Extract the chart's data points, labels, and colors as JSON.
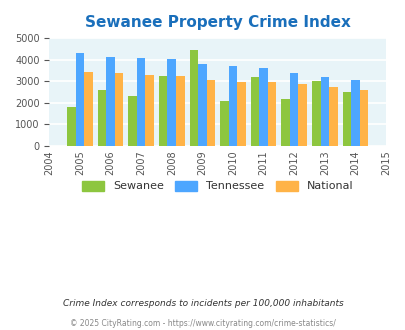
{
  "title": "Sewanee Property Crime Index",
  "title_color": "#1a6fbb",
  "years": [
    2004,
    2005,
    2006,
    2007,
    2008,
    2009,
    2010,
    2011,
    2012,
    2013,
    2014,
    2015
  ],
  "data_years": [
    2005,
    2006,
    2007,
    2008,
    2009,
    2010,
    2011,
    2012,
    2013,
    2014
  ],
  "sewanee": [
    1800,
    2600,
    2300,
    3250,
    4450,
    2050,
    3200,
    2150,
    3000,
    2500
  ],
  "tennessee": [
    4300,
    4100,
    4080,
    4050,
    3780,
    3680,
    3600,
    3380,
    3180,
    3070
  ],
  "national": [
    3440,
    3360,
    3260,
    3220,
    3050,
    2960,
    2940,
    2880,
    2730,
    2600
  ],
  "sewanee_color": "#8dc63f",
  "tennessee_color": "#4da6ff",
  "national_color": "#ffb347",
  "ylim": [
    0,
    5000
  ],
  "yticks": [
    0,
    1000,
    2000,
    3000,
    4000,
    5000
  ],
  "bg_color": "#e8f4f8",
  "grid_color": "#ffffff",
  "subtitle": "Crime Index corresponds to incidents per 100,000 inhabitants",
  "footer": "© 2025 CityRating.com - https://www.cityrating.com/crime-statistics/",
  "subtitle_color": "#333333",
  "footer_color": "#888888"
}
